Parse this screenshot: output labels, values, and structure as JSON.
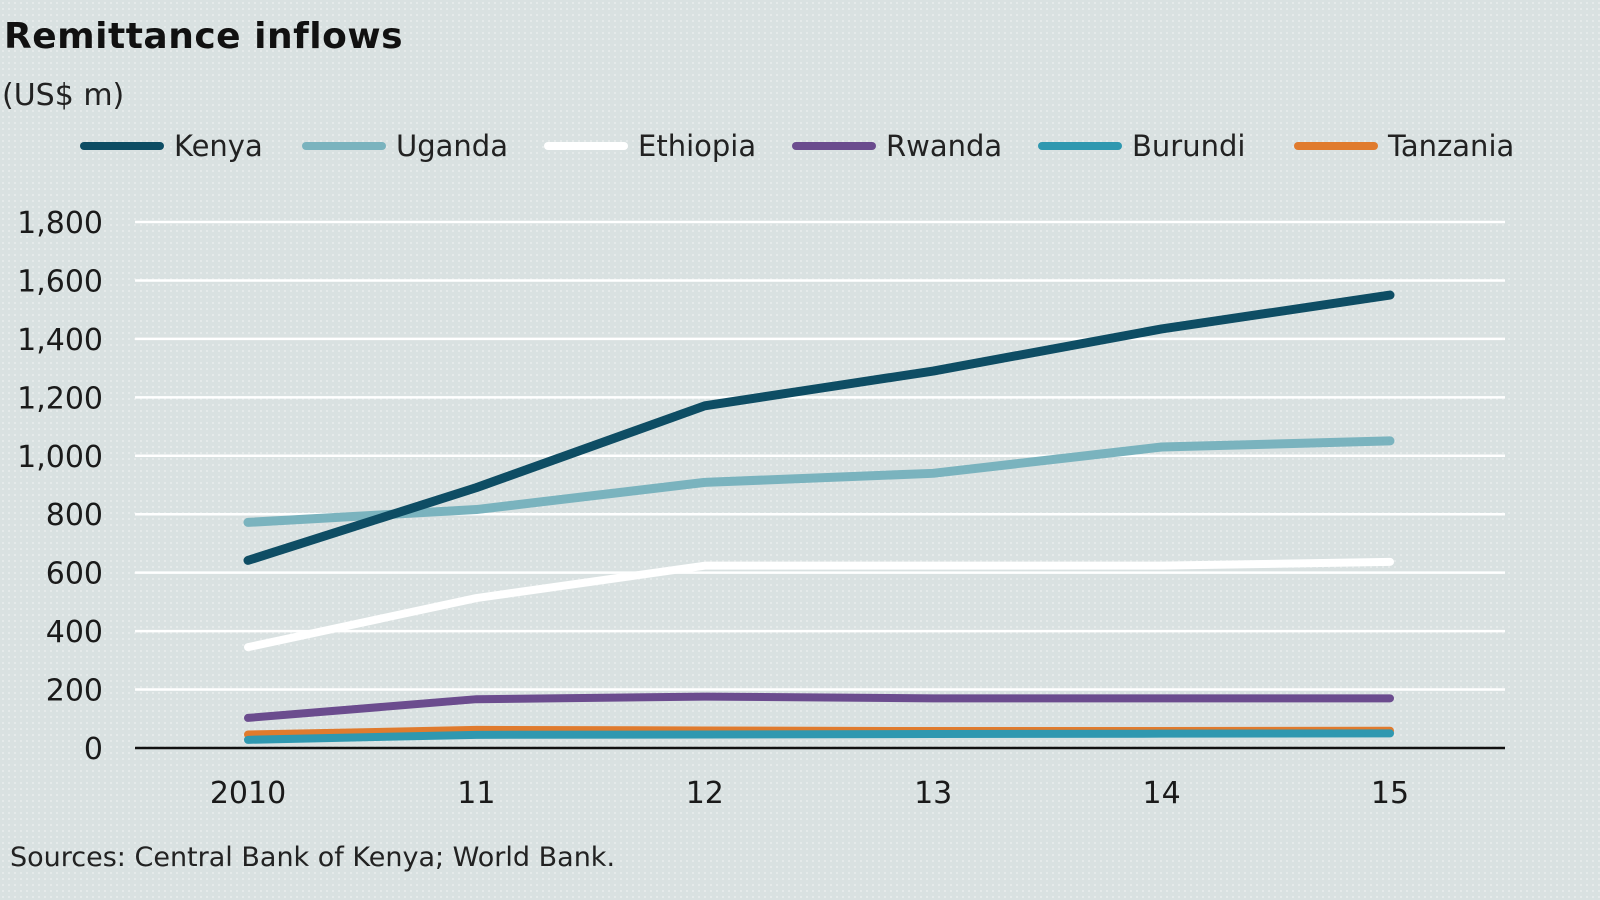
{
  "title": "Remittance inflows",
  "subtitle": "(US$ m)",
  "source": "Sources: Central Bank of Kenya; World Bank.",
  "chart_data": {
    "type": "line",
    "title": "Remittance inflows",
    "ylabel": "(US$ m)",
    "xlabel": "",
    "categories": [
      "2010",
      "11",
      "12",
      "13",
      "14",
      "15"
    ],
    "ylim": [
      0,
      1800
    ],
    "yticks": [
      0,
      200,
      400,
      600,
      800,
      1000,
      1200,
      1400,
      1600,
      1800
    ],
    "ytick_labels": [
      "0",
      "200",
      "400",
      "600",
      "800",
      "1,000",
      "1,200",
      "1,400",
      "1,600",
      "1,800"
    ],
    "grid": true,
    "legend_position": "top",
    "series": [
      {
        "name": "Kenya",
        "color": "#0e4d64",
        "values": [
          642,
          891,
          1171,
          1290,
          1434,
          1550
        ]
      },
      {
        "name": "Uganda",
        "color": "#7ab3be",
        "values": [
          772,
          816,
          909,
          940,
          1030,
          1051
        ]
      },
      {
        "name": "Ethiopia",
        "color": "#ffffff",
        "values": [
          345,
          513,
          624,
          624,
          624,
          637
        ]
      },
      {
        "name": "Rwanda",
        "color": "#6b4c8e",
        "values": [
          103,
          167,
          176,
          170,
          170,
          170
        ]
      },
      {
        "name": "Burundi",
        "color": "#2f98b0",
        "values": [
          28,
          45,
          46,
          48,
          49,
          50
        ]
      },
      {
        "name": "Tanzania",
        "color": "#e07b2e",
        "values": [
          46,
          62,
          60,
          58,
          58,
          59
        ]
      }
    ]
  }
}
